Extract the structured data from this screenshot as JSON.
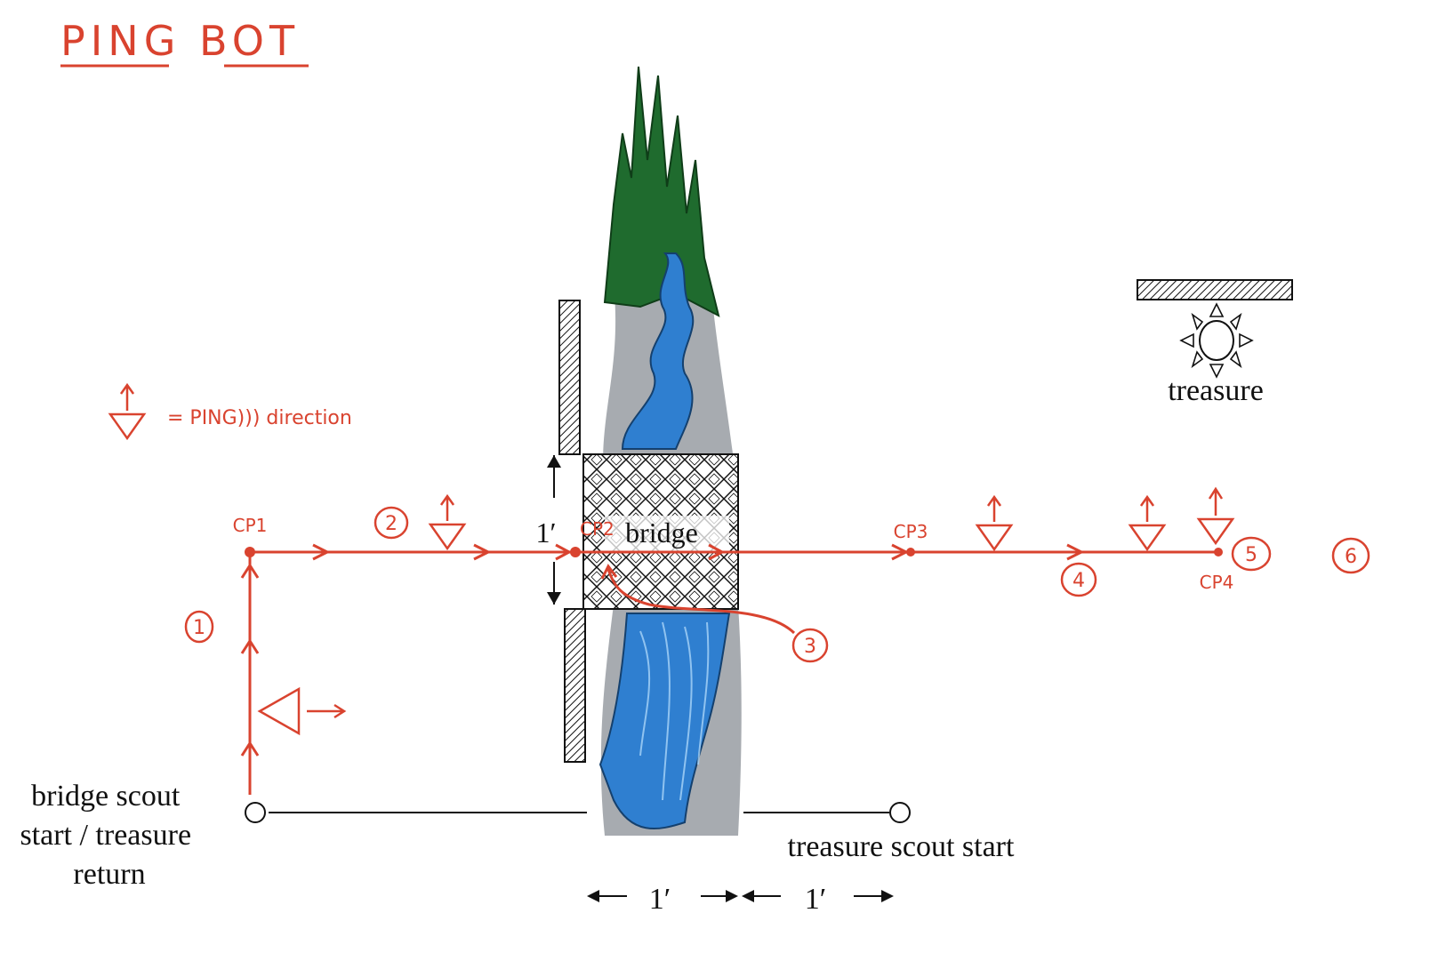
{
  "title": "PING BOT",
  "legend": {
    "text": "= PING))) direction"
  },
  "labels": {
    "bridge": "bridge",
    "treasure": "treasure",
    "bridge_scout_start": [
      "bridge scout",
      "start / treasure",
      "return"
    ],
    "treasure_scout_start": "treasure scout start",
    "gap_height": "1′",
    "width_left": "1′",
    "width_right": "1′"
  },
  "checkpoints": [
    "CP1",
    "CP2",
    "CP3",
    "CP4"
  ],
  "steps": [
    "1",
    "2",
    "3",
    "4",
    "5",
    "6"
  ],
  "colors": {
    "path": "#d9432f",
    "ink": "#111111",
    "water": "#2f7fd0",
    "trees": "#1f6b2e"
  }
}
